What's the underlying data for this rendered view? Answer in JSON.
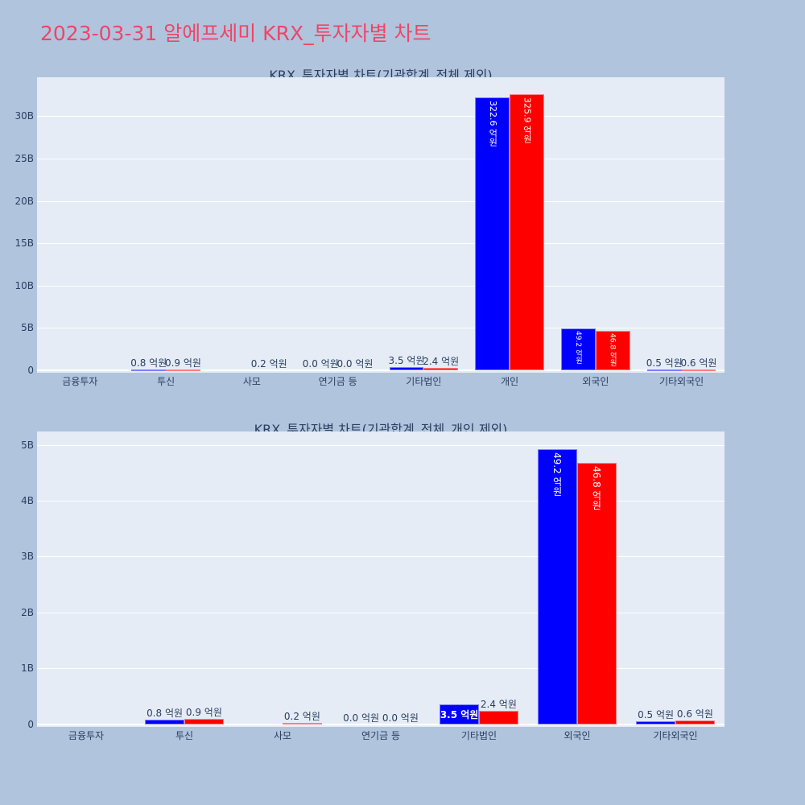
{
  "page": {
    "title": "2023-03-31 알에프세미 KRX_투자자별 차트",
    "title_color": "#ef4566",
    "background": "#b0c4de",
    "plot_background": "#e5ecf6",
    "series_colors": {
      "blue": "#0000ff",
      "red": "#ff0000"
    }
  },
  "chart_data": [
    {
      "type": "bar",
      "title": "KRX_투자자별 차트(기관합계_전체 제외)",
      "categories": [
        "금융투자",
        "투신",
        "사모",
        "연기금 등",
        "기타법인",
        "개인",
        "외국인",
        "기타외국인"
      ],
      "series": [
        {
          "name": "blue",
          "color": "#0000ff",
          "values": [
            0,
            80000000,
            0,
            0,
            350000000,
            32260000000,
            4920000000,
            50000000
          ],
          "labels": [
            "",
            "0.8 억원",
            "",
            "0.0 억원",
            "3.5 억원",
            "322.6 억원",
            "49.2 억원",
            "0.5 억원"
          ]
        },
        {
          "name": "red",
          "color": "#ff0000",
          "values": [
            0,
            90000000,
            20000000,
            0,
            240000000,
            32590000000,
            4680000000,
            60000000
          ],
          "labels": [
            "",
            "0.9 억원",
            "0.2 억원",
            "0.0 억원",
            "2.4 억원",
            "325.9 억원",
            "46.8 억원",
            "0.6 억원"
          ]
        }
      ],
      "yticks": [
        0,
        5000000000,
        10000000000,
        15000000000,
        20000000000,
        25000000000,
        30000000000
      ],
      "ytick_labels": [
        "0",
        "5B",
        "10B",
        "15B",
        "20B",
        "25B",
        "30B"
      ],
      "ylim": [
        -300000000,
        34600000000
      ],
      "xlabel": "",
      "ylabel": "",
      "legend": "none",
      "grid": true
    },
    {
      "type": "bar",
      "title": "KRX_투자자별 차트(기관합계_전체_개인 제외)",
      "categories": [
        "금융투자",
        "투신",
        "사모",
        "연기금 등",
        "기타법인",
        "외국인",
        "기타외국인"
      ],
      "series": [
        {
          "name": "blue",
          "color": "#0000ff",
          "values": [
            0,
            80000000,
            0,
            0,
            350000000,
            4920000000,
            50000000
          ],
          "labels": [
            "",
            "0.8 억원",
            "",
            "0.0 억원",
            "3.5 억원",
            "49.2 억원",
            "0.5 억원"
          ]
        },
        {
          "name": "red",
          "color": "#ff0000",
          "values": [
            0,
            90000000,
            20000000,
            0,
            240000000,
            4680000000,
            60000000
          ],
          "labels": [
            "",
            "0.9 억원",
            "0.2 억원",
            "0.0 억원",
            "2.4 억원",
            "46.8 억원",
            "0.6 억원"
          ]
        }
      ],
      "yticks": [
        0,
        1000000000,
        2000000000,
        3000000000,
        4000000000,
        5000000000
      ],
      "ytick_labels": [
        "0",
        "1B",
        "2B",
        "3B",
        "4B",
        "5B"
      ],
      "ylim": [
        -50000000,
        5240000000
      ],
      "xlabel": "",
      "ylabel": "",
      "legend": "none",
      "grid": true
    }
  ]
}
